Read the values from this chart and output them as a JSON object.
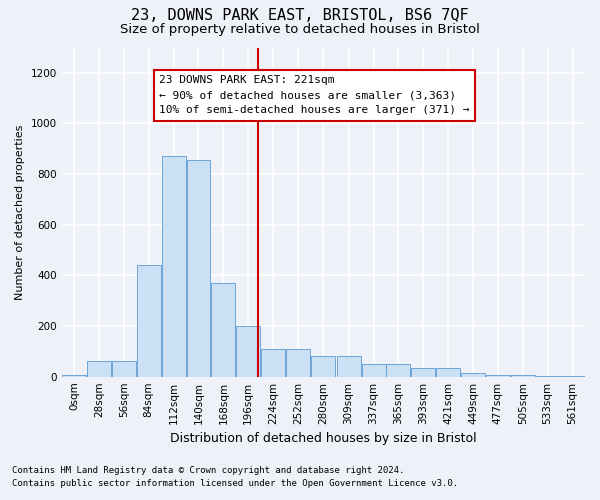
{
  "title": "23, DOWNS PARK EAST, BRISTOL, BS6 7QF",
  "subtitle": "Size of property relative to detached houses in Bristol",
  "xlabel": "Distribution of detached houses by size in Bristol",
  "ylabel": "Number of detached properties",
  "bar_labels": [
    "0sqm",
    "28sqm",
    "56sqm",
    "84sqm",
    "112sqm",
    "140sqm",
    "168sqm",
    "196sqm",
    "224sqm",
    "252sqm",
    "280sqm",
    "309sqm",
    "337sqm",
    "365sqm",
    "393sqm",
    "421sqm",
    "449sqm",
    "477sqm",
    "505sqm",
    "533sqm",
    "561sqm"
  ],
  "bar_heights": [
    5,
    60,
    60,
    440,
    870,
    855,
    370,
    200,
    110,
    110,
    80,
    80,
    50,
    50,
    35,
    35,
    15,
    5,
    5,
    2,
    1
  ],
  "bar_face_color": "#cce0f5",
  "bar_edge_color": "#5b9bd5",
  "bar_left_edges": [
    0,
    28,
    56,
    84,
    112,
    140,
    168,
    196,
    224,
    252,
    280,
    309,
    337,
    365,
    393,
    421,
    449,
    477,
    505,
    533,
    561
  ],
  "bar_widths": [
    28,
    28,
    28,
    28,
    28,
    28,
    28,
    28,
    28,
    28,
    28,
    28,
    28,
    28,
    28,
    28,
    28,
    28,
    28,
    28,
    28
  ],
  "property_size": 221,
  "vline_color": "#cc0000",
  "annotation_text": "23 DOWNS PARK EAST: 221sqm\n← 90% of detached houses are smaller (3,363)\n10% of semi-detached houses are larger (371) →",
  "annotation_box_color": "#cc0000",
  "ylim": [
    0,
    1300
  ],
  "yticks": [
    0,
    200,
    400,
    600,
    800,
    1000,
    1200
  ],
  "xlim_left": 0,
  "xlim_right": 589,
  "background_color": "#eef2f8",
  "axes_bg_color": "#eef2f8",
  "grid_color": "#ffffff",
  "footer_line1": "Contains HM Land Registry data © Crown copyright and database right 2024.",
  "footer_line2": "Contains public sector information licensed under the Open Government Licence v3.0.",
  "title_fontsize": 11,
  "subtitle_fontsize": 9.5,
  "xlabel_fontsize": 9,
  "ylabel_fontsize": 8,
  "tick_fontsize": 7.5,
  "annotation_fontsize": 8,
  "footer_fontsize": 6.5
}
